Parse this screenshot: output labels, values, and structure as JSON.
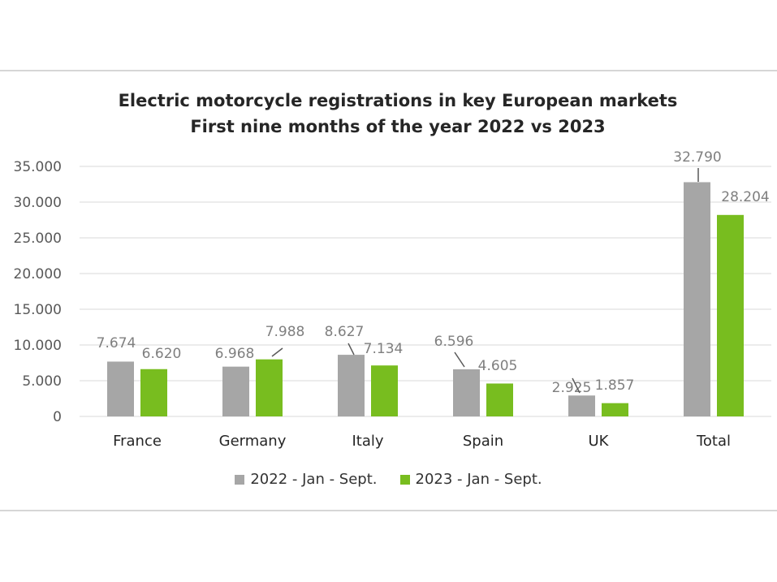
{
  "chart_data": {
    "type": "bar",
    "title": "Electric motorcycle registrations in key European markets",
    "subtitle": "First nine months of the year 2022 vs 2023",
    "categories": [
      "France",
      "Germany",
      "Italy",
      "Spain",
      "UK",
      "Total"
    ],
    "series": [
      {
        "name": "2022 - Jan - Sept.",
        "color": "#a6a6a6",
        "values": [
          7674,
          6968,
          8627,
          6596,
          2925,
          32790
        ],
        "labels": [
          "7.674",
          "6.968",
          "8.627",
          "6.596",
          "2.925",
          "32.790"
        ]
      },
      {
        "name": "2023 - Jan - Sept.",
        "color": "#78bd1f",
        "values": [
          6620,
          7988,
          7134,
          4605,
          1857,
          28204
        ],
        "labels": [
          "6.620",
          "7.988",
          "7.134",
          "4.605",
          "1.857",
          "28.204"
        ]
      }
    ],
    "ylim": [
      0,
      35000
    ],
    "yticks": [
      0,
      5000,
      10000,
      15000,
      20000,
      25000,
      30000,
      35000
    ],
    "ytick_labels": [
      "0",
      "5.000",
      "10.000",
      "15.000",
      "20.000",
      "25.000",
      "30.000",
      "35.000"
    ],
    "xlabel": "",
    "ylabel": "",
    "grid": true,
    "legend": "bottom"
  }
}
